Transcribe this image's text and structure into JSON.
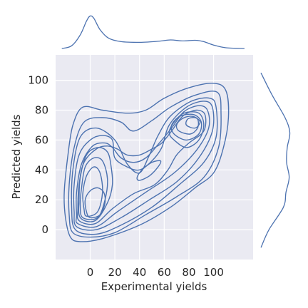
{
  "chart_data": {
    "type": "kde-joint",
    "xlabel": "Experimental yields",
    "ylabel": "Predicted yields",
    "xlim": [
      -28,
      132
    ],
    "ylim": [
      -20,
      117
    ],
    "x_ticks": [
      0,
      20,
      40,
      60,
      80,
      100
    ],
    "y_ticks": [
      0,
      20,
      40,
      60,
      80,
      100
    ],
    "grid": true,
    "colors": {
      "line": "#4c72b0",
      "panel": "#eaeaf2",
      "grid": "#ffffff"
    },
    "contours": [
      {
        "level": 1,
        "points": [
          [
            -16,
            -5
          ],
          [
            -8,
            -8
          ],
          [
            10,
            -6
          ],
          [
            40,
            3
          ],
          [
            65,
            15
          ],
          [
            85,
            28
          ],
          [
            100,
            38
          ],
          [
            108,
            55
          ],
          [
            112,
            75
          ],
          [
            110,
            93
          ],
          [
            100,
            98
          ],
          [
            80,
            95
          ],
          [
            60,
            88
          ],
          [
            45,
            80
          ],
          [
            30,
            78
          ],
          [
            10,
            80
          ],
          [
            -6,
            82
          ],
          [
            -14,
            70
          ],
          [
            -18,
            50
          ],
          [
            -21,
            25
          ],
          [
            -20,
            8
          ]
        ]
      },
      {
        "level": 2,
        "points": [
          [
            -14,
            -2
          ],
          [
            0,
            -5
          ],
          [
            20,
            -2
          ],
          [
            45,
            10
          ],
          [
            70,
            22
          ],
          [
            92,
            35
          ],
          [
            104,
            55
          ],
          [
            106,
            78
          ],
          [
            103,
            92
          ],
          [
            85,
            90
          ],
          [
            65,
            82
          ],
          [
            50,
            73
          ],
          [
            35,
            66
          ],
          [
            25,
            72
          ],
          [
            10,
            75
          ],
          [
            -5,
            72
          ],
          [
            -13,
            55
          ],
          [
            -17,
            30
          ],
          [
            -17,
            10
          ]
        ]
      },
      {
        "level": 3,
        "points": [
          [
            -12,
            0
          ],
          [
            5,
            -3
          ],
          [
            25,
            3
          ],
          [
            50,
            15
          ],
          [
            72,
            30
          ],
          [
            92,
            45
          ],
          [
            102,
            62
          ],
          [
            102,
            82
          ],
          [
            97,
            88
          ],
          [
            82,
            86
          ],
          [
            65,
            76
          ],
          [
            55,
            63
          ],
          [
            48,
            50
          ],
          [
            40,
            38
          ],
          [
            30,
            44
          ],
          [
            20,
            60
          ],
          [
            5,
            68
          ],
          [
            -8,
            62
          ],
          [
            -14,
            40
          ],
          [
            -15,
            15
          ]
        ]
      },
      {
        "level": 4,
        "points": [
          [
            -11,
            2
          ],
          [
            5,
            0
          ],
          [
            25,
            8
          ],
          [
            48,
            20
          ],
          [
            70,
            32
          ],
          [
            88,
            48
          ],
          [
            99,
            66
          ],
          [
            99,
            82
          ],
          [
            92,
            86
          ],
          [
            78,
            82
          ],
          [
            64,
            70
          ],
          [
            58,
            55
          ],
          [
            50,
            46
          ],
          [
            40,
            40
          ],
          [
            30,
            42
          ],
          [
            20,
            48
          ],
          [
            18,
            60
          ],
          [
            10,
            63
          ],
          [
            0,
            60
          ],
          [
            -9,
            50
          ],
          [
            -13,
            30
          ],
          [
            -13,
            12
          ]
        ]
      },
      {
        "level": 5,
        "points": [
          [
            -10,
            4
          ],
          [
            5,
            2
          ],
          [
            22,
            12
          ],
          [
            45,
            25
          ],
          [
            68,
            38
          ],
          [
            86,
            53
          ],
          [
            96,
            68
          ],
          [
            95,
            80
          ],
          [
            88,
            83
          ],
          [
            76,
            79
          ],
          [
            66,
            68
          ],
          [
            55,
            57
          ],
          [
            45,
            48
          ],
          [
            35,
            45
          ],
          [
            25,
            48
          ],
          [
            18,
            55
          ],
          [
            12,
            58
          ],
          [
            2,
            56
          ],
          [
            -7,
            44
          ],
          [
            -11,
            25
          ],
          [
            -11,
            10
          ]
        ]
      },
      {
        "level": 6,
        "points": [
          [
            -9,
            6
          ],
          [
            4,
            4
          ],
          [
            18,
            14
          ],
          [
            35,
            24
          ],
          [
            52,
            30
          ],
          [
            63,
            40
          ],
          [
            70,
            50
          ],
          [
            80,
            58
          ],
          [
            92,
            66
          ],
          [
            93,
            77
          ],
          [
            86,
            80
          ],
          [
            75,
            76
          ],
          [
            66,
            66
          ],
          [
            58,
            58
          ],
          [
            50,
            54
          ],
          [
            40,
            50
          ],
          [
            30,
            50
          ],
          [
            22,
            54
          ],
          [
            14,
            56
          ],
          [
            5,
            54
          ],
          [
            -5,
            45
          ],
          [
            -9,
            30
          ],
          [
            -10,
            14
          ]
        ]
      },
      {
        "level": 7,
        "points": [
          [
            -8,
            8
          ],
          [
            4,
            6
          ],
          [
            14,
            18
          ],
          [
            18,
            30
          ],
          [
            17,
            42
          ],
          [
            14,
            52
          ],
          [
            6,
            55
          ],
          [
            -3,
            50
          ],
          [
            -8,
            35
          ],
          [
            -9,
            20
          ]
        ]
      },
      {
        "level": 7,
        "points": [
          [
            68,
            60
          ],
          [
            78,
            55
          ],
          [
            88,
            60
          ],
          [
            92,
            70
          ],
          [
            88,
            78
          ],
          [
            76,
            78
          ],
          [
            68,
            72
          ],
          [
            64,
            65
          ]
        ]
      },
      {
        "level": 8,
        "points": [
          [
            -6,
            8
          ],
          [
            6,
            8
          ],
          [
            12,
            20
          ],
          [
            14,
            34
          ],
          [
            10,
            46
          ],
          [
            3,
            48
          ],
          [
            -4,
            42
          ],
          [
            -7,
            28
          ],
          [
            -8,
            16
          ]
        ]
      },
      {
        "level": 8,
        "points": [
          [
            68,
            64
          ],
          [
            78,
            60
          ],
          [
            88,
            64
          ],
          [
            90,
            72
          ],
          [
            84,
            77
          ],
          [
            73,
            76
          ],
          [
            66,
            70
          ]
        ]
      },
      {
        "level": 9,
        "points": [
          [
            -3,
            9
          ],
          [
            6,
            12
          ],
          [
            10,
            25
          ],
          [
            8,
            38
          ],
          [
            3,
            42
          ],
          [
            -3,
            36
          ],
          [
            -6,
            24
          ],
          [
            -5,
            14
          ]
        ]
      },
      {
        "level": 9,
        "points": [
          [
            72,
            66
          ],
          [
            81,
            64
          ],
          [
            87,
            68
          ],
          [
            87,
            74
          ],
          [
            81,
            76
          ],
          [
            74,
            74
          ],
          [
            70,
            70
          ]
        ]
      },
      {
        "level": 10,
        "points": [
          [
            0,
            8
          ],
          [
            8,
            10
          ],
          [
            12,
            18
          ],
          [
            11,
            25
          ],
          [
            6,
            28
          ],
          [
            0,
            26
          ],
          [
            -4,
            20
          ],
          [
            -3,
            12
          ]
        ]
      },
      {
        "level": 10,
        "points": [
          [
            78,
            70
          ],
          [
            85,
            68
          ],
          [
            89,
            72
          ],
          [
            85,
            75
          ],
          [
            79,
            74
          ]
        ]
      },
      {
        "level": 4,
        "points": [
          [
            40,
            33
          ],
          [
            48,
            36
          ],
          [
            55,
            42
          ],
          [
            57,
            46
          ],
          [
            50,
            45
          ],
          [
            42,
            40
          ],
          [
            38,
            35
          ]
        ]
      }
    ],
    "marginal_x": {
      "x": [
        -23,
        -15,
        -8,
        -3,
        0,
        3,
        8,
        15,
        25,
        40,
        55,
        65,
        75,
        85,
        92,
        100,
        110,
        125
      ],
      "density": [
        0.0,
        0.08,
        0.4,
        0.8,
        0.95,
        0.88,
        0.55,
        0.3,
        0.2,
        0.18,
        0.21,
        0.25,
        0.22,
        0.24,
        0.2,
        0.1,
        0.02,
        0.0
      ]
    },
    "marginal_y": {
      "y": [
        -12,
        0,
        15,
        25,
        35,
        45,
        55,
        65,
        75,
        90,
        105
      ],
      "density": [
        0.0,
        0.25,
        0.7,
        0.78,
        0.88,
        0.8,
        0.82,
        0.9,
        0.75,
        0.35,
        0.0
      ]
    }
  }
}
